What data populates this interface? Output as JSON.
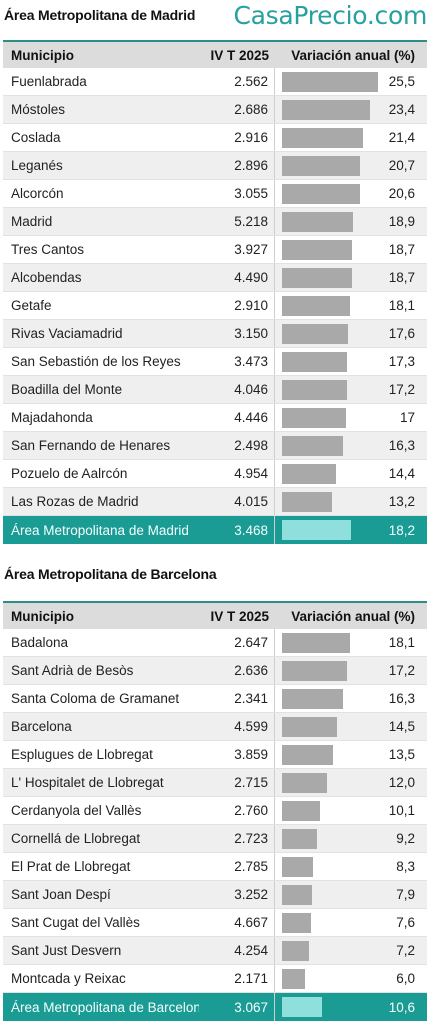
{
  "brand": "CasaPrecio.com",
  "colors": {
    "accent": "#1a9c94",
    "bar": "#a9a9a9",
    "total_bar": "#8fdfdc"
  },
  "chart_data": [
    {
      "type": "bar",
      "title": "Área Metropolitana de Madrid",
      "columns": [
        "Municipio",
        "IV T 2025",
        "Variación anual (%)"
      ],
      "rows": [
        {
          "name": "Fuenlabrada",
          "price": "2.562",
          "change": "25,5",
          "value": 25.5
        },
        {
          "name": "Móstoles",
          "price": "2.686",
          "change": "23,4",
          "value": 23.4
        },
        {
          "name": "Coslada",
          "price": "2.916",
          "change": "21,4",
          "value": 21.4
        },
        {
          "name": "Leganés",
          "price": "2.896",
          "change": "20,7",
          "value": 20.7
        },
        {
          "name": "Alcorcón",
          "price": "3.055",
          "change": "20,6",
          "value": 20.6
        },
        {
          "name": "Madrid",
          "price": "5.218",
          "change": "18,9",
          "value": 18.9
        },
        {
          "name": "Tres Cantos",
          "price": "3.927",
          "change": "18,7",
          "value": 18.7
        },
        {
          "name": "Alcobendas",
          "price": "4.490",
          "change": "18,7",
          "value": 18.7
        },
        {
          "name": "Getafe",
          "price": "2.910",
          "change": "18,1",
          "value": 18.1
        },
        {
          "name": "Rivas Vaciamadrid",
          "price": "3.150",
          "change": "17,6",
          "value": 17.6
        },
        {
          "name": "San Sebastión de los Reyes",
          "price": "3.473",
          "change": "17,3",
          "value": 17.3
        },
        {
          "name": "Boadilla del Monte",
          "price": "4.046",
          "change": "17,2",
          "value": 17.2
        },
        {
          "name": "Majadahonda",
          "price": "4.446",
          "change": "17",
          "value": 17.0
        },
        {
          "name": "San Fernando de Henares",
          "price": "2.498",
          "change": "16,3",
          "value": 16.3
        },
        {
          "name": "Pozuelo de Aalrcón",
          "price": "4.954",
          "change": "14,4",
          "value": 14.4
        },
        {
          "name": "Las Rozas de Madrid",
          "price": "4.015",
          "change": "13,2",
          "value": 13.2
        }
      ],
      "total": {
        "name": "Área Metropolitana de Madrid",
        "price": "3.468",
        "change": "18,2",
        "value": 18.2
      }
    },
    {
      "type": "bar",
      "title": "Área Metropolitana de Barcelona",
      "columns": [
        "Municipio",
        "IV T 2025",
        "Variación anual (%)"
      ],
      "rows": [
        {
          "name": "Badalona",
          "price": "2.647",
          "change": "18,1",
          "value": 18.1
        },
        {
          "name": "Sant Adrià de Besòs",
          "price": "2.636",
          "change": "17,2",
          "value": 17.2
        },
        {
          "name": "Santa Coloma de Gramanet",
          "price": "2.341",
          "change": "16,3",
          "value": 16.3
        },
        {
          "name": "Barcelona",
          "price": "4.599",
          "change": "14,5",
          "value": 14.5
        },
        {
          "name": "Esplugues de Llobregat",
          "price": "3.859",
          "change": "13,5",
          "value": 13.5
        },
        {
          "name": "L' Hospitalet de Llobregat",
          "price": "2.715",
          "change": "12,0",
          "value": 12.0
        },
        {
          "name": "Cerdanyola del Vallès",
          "price": "2.760",
          "change": "10,1",
          "value": 10.1
        },
        {
          "name": "Cornellá de Llobregat",
          "price": "2.723",
          "change": "9,2",
          "value": 9.2
        },
        {
          "name": "El Prat de Llobregat",
          "price": "2.785",
          "change": "8,3",
          "value": 8.3
        },
        {
          "name": "Sant Joan Despí",
          "price": "3.252",
          "change": "7,9",
          "value": 7.9
        },
        {
          "name": "Sant Cugat del Vallès",
          "price": "4.667",
          "change": "7,6",
          "value": 7.6
        },
        {
          "name": "Sant Just Desvern",
          "price": "4.254",
          "change": "7,2",
          "value": 7.2
        },
        {
          "name": "Montcada y Reixac",
          "price": "2.171",
          "change": "6,0",
          "value": 6.0
        }
      ],
      "total": {
        "name": "Área Metropolitana de Barcelona",
        "price": "3.067",
        "change": "10,6",
        "value": 10.6
      }
    }
  ]
}
